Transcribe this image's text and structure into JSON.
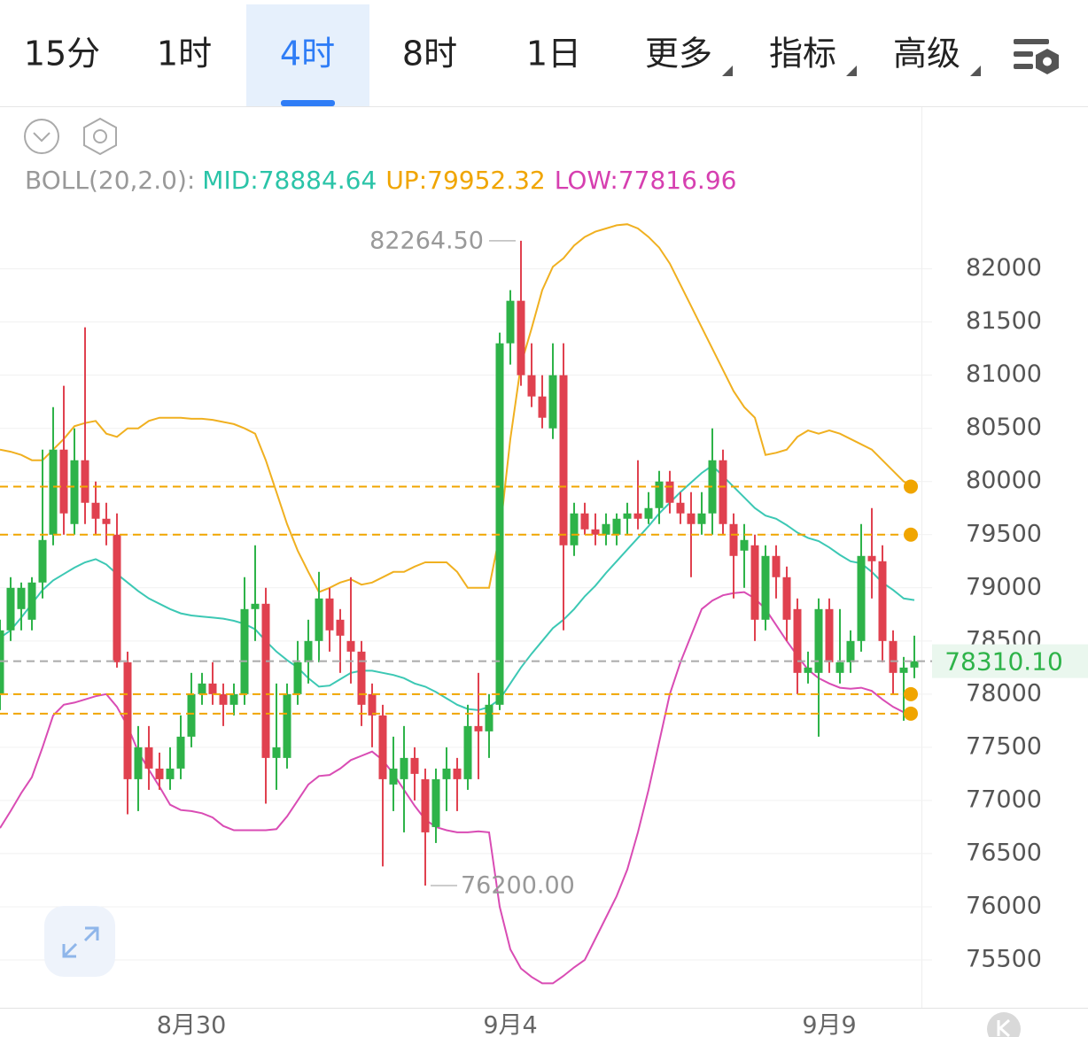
{
  "tabs": [
    "15分",
    "1时",
    "4时",
    "8时",
    "1日",
    "更多",
    "指标",
    "高级"
  ],
  "indicator": {
    "name": "BOLL(20,2.0):",
    "mid": "MID:78884.64",
    "up": "UP:79952.32",
    "low": "LOW:77816.96"
  },
  "chart_data": {
    "type": "candlestick",
    "categories": [
      null,
      null,
      null,
      null,
      null,
      null,
      null,
      null,
      null,
      null,
      null,
      null,
      null,
      null,
      null,
      null,
      null,
      null,
      "8月30",
      null,
      null,
      null,
      null,
      null,
      null,
      null,
      null,
      null,
      null,
      null,
      null,
      null,
      null,
      null,
      null,
      null,
      null,
      null,
      null,
      null,
      null,
      null,
      null,
      null,
      null,
      null,
      null,
      null,
      "9月4",
      null,
      null,
      null,
      null,
      null,
      null,
      null,
      null,
      null,
      null,
      null,
      null,
      null,
      null,
      null,
      null,
      null,
      null,
      null,
      null,
      null,
      null,
      null,
      null,
      null,
      null,
      null,
      null,
      null,
      "9月9",
      null,
      null,
      null,
      null,
      null,
      null,
      null,
      null
    ],
    "open": [
      78000,
      78600,
      78800,
      78700,
      79050,
      79500,
      80300,
      79600,
      80200,
      79800,
      79650,
      79500,
      78300,
      77200,
      77500,
      77300,
      77200,
      77300,
      77600,
      78000,
      78100,
      78000,
      77900,
      78000,
      78800,
      78850,
      77400,
      77400,
      78000,
      78300,
      78500,
      78900,
      78700,
      78500,
      78400,
      78000,
      77800,
      77150,
      77200,
      77400,
      77200,
      76750,
      77200,
      77300,
      77200,
      77700,
      77650,
      77900,
      81300,
      81700,
      81000,
      80800,
      80500,
      81000,
      79400,
      79700,
      79550,
      79500,
      79500,
      79650,
      79700,
      79650,
      79750,
      80000,
      79800,
      79700,
      79600,
      79700,
      80200,
      79600,
      79350,
      79400,
      78700,
      79300,
      79100,
      78800,
      78200,
      78200,
      78800,
      78200,
      78300,
      78500,
      79300,
      79250,
      78500,
      78200,
      78250
    ],
    "high": [
      78700,
      79100,
      79050,
      79100,
      80300,
      80700,
      80900,
      80500,
      81450,
      80000,
      79800,
      79700,
      78400,
      77700,
      77700,
      77450,
      77500,
      77800,
      78200,
      78200,
      78300,
      78100,
      78100,
      79100,
      79400,
      79000,
      78100,
      78100,
      78500,
      78700,
      79150,
      79000,
      78800,
      79100,
      78500,
      78100,
      77900,
      77600,
      77700,
      77500,
      77300,
      77300,
      77500,
      77400,
      77900,
      78200,
      78000,
      81400,
      81800,
      82264.5,
      81300,
      81000,
      81300,
      81300,
      79800,
      79800,
      79700,
      79700,
      79700,
      79800,
      80200,
      79900,
      80100,
      80100,
      79900,
      79900,
      79900,
      80500,
      80300,
      79700,
      79600,
      79500,
      79400,
      79400,
      79200,
      78900,
      78400,
      78900,
      78900,
      78800,
      78600,
      79600,
      79750,
      79400,
      78600,
      78350,
      78550
    ],
    "low": [
      77850,
      78500,
      78600,
      78600,
      78900,
      79400,
      79500,
      79500,
      79600,
      79500,
      79400,
      78250,
      76870,
      76900,
      77100,
      77100,
      77100,
      77200,
      77500,
      77900,
      77900,
      77700,
      77800,
      77900,
      78500,
      76970,
      77100,
      77300,
      77900,
      78100,
      78300,
      78400,
      78200,
      78100,
      77700,
      77500,
      76380,
      76900,
      76700,
      77000,
      76200,
      76600,
      76900,
      76900,
      77100,
      77200,
      77400,
      77850,
      81100,
      80900,
      80700,
      80500,
      80400,
      78600,
      79300,
      79500,
      79400,
      79400,
      79400,
      79500,
      79550,
      79600,
      79600,
      79700,
      79600,
      79100,
      79500,
      79500,
      79500,
      78900,
      79000,
      78500,
      78600,
      78900,
      78500,
      78000,
      78100,
      77600,
      78200,
      78100,
      78200,
      78400,
      78900,
      78300,
      78000,
      77750,
      78150
    ],
    "close": [
      78600,
      79000,
      79000,
      79050,
      79450,
      80300,
      79700,
      80200,
      79800,
      79650,
      79600,
      78300,
      77200,
      77500,
      77300,
      77200,
      77300,
      77600,
      78000,
      78100,
      78000,
      77900,
      78000,
      78800,
      78850,
      77400,
      77500,
      78000,
      78300,
      78500,
      78900,
      78600,
      78550,
      78400,
      77900,
      77800,
      77200,
      77300,
      77400,
      77250,
      76700,
      77200,
      77300,
      77200,
      77700,
      77650,
      77900,
      81300,
      81700,
      81000,
      80800,
      80600,
      81000,
      79400,
      79700,
      79550,
      79500,
      79600,
      79650,
      79700,
      79650,
      79750,
      80000,
      79800,
      79700,
      79600,
      79700,
      80200,
      79600,
      79300,
      79450,
      78700,
      79300,
      79100,
      78700,
      78200,
      78250,
      78800,
      78300,
      78300,
      78500,
      79300,
      79250,
      78500,
      78200,
      78250,
      78310.1
    ],
    "up_color": "#2eb349",
    "down_color": "#e0414f",
    "series": [
      {
        "color": "#f0b020",
        "values": [
          80300,
          80280,
          80250,
          80200,
          80200,
          80300,
          80400,
          80520,
          80550,
          80570,
          80450,
          80420,
          80500,
          80500,
          80570,
          80600,
          80600,
          80600,
          80590,
          80590,
          80580,
          80560,
          80540,
          80500,
          80450,
          80200,
          79900,
          79600,
          79350,
          79150,
          78960,
          79000,
          79050,
          79080,
          79030,
          79050,
          79100,
          79150,
          79150,
          79200,
          79240,
          79240,
          79240,
          79150,
          79000,
          79000,
          79000,
          79500,
          80400,
          81100,
          81440,
          81800,
          82020,
          82100,
          82220,
          82300,
          82350,
          82380,
          82410,
          82420,
          82380,
          82300,
          82200,
          82050,
          81850,
          81650,
          81450,
          81250,
          81050,
          80850,
          80700,
          80600,
          80250,
          80270,
          80300,
          80420,
          80480,
          80450,
          80480,
          80450,
          80400,
          80350,
          80300,
          80200,
          80100,
          80000,
          79952.32
        ]
      },
      {
        "color": "#3cc8b4",
        "values": [
          78530,
          78600,
          78720,
          78850,
          78980,
          79070,
          79130,
          79190,
          79240,
          79270,
          79220,
          79130,
          79050,
          78970,
          78900,
          78850,
          78800,
          78760,
          78740,
          78730,
          78720,
          78710,
          78690,
          78660,
          78610,
          78500,
          78400,
          78320,
          78250,
          78150,
          78070,
          78080,
          78140,
          78200,
          78220,
          78220,
          78200,
          78180,
          78150,
          78100,
          78070,
          78020,
          77960,
          77900,
          77860,
          77850,
          77880,
          77950,
          78100,
          78250,
          78380,
          78500,
          78620,
          78700,
          78800,
          78920,
          79020,
          79140,
          79250,
          79360,
          79470,
          79580,
          79700,
          79800,
          79900,
          79990,
          80080,
          80150,
          80050,
          79950,
          79850,
          79750,
          79680,
          79650,
          79590,
          79520,
          79470,
          79440,
          79380,
          79310,
          79250,
          79230,
          79150,
          79050,
          78980,
          78900,
          78884.64
        ]
      },
      {
        "color": "#d94cb4",
        "values": [
          76740,
          76900,
          77070,
          77220,
          77500,
          77800,
          77900,
          77920,
          77950,
          77980,
          78000,
          77880,
          77700,
          77460,
          77290,
          77130,
          76960,
          76910,
          76900,
          76880,
          76840,
          76760,
          76720,
          76720,
          76720,
          76720,
          76730,
          76850,
          77000,
          77150,
          77230,
          77240,
          77300,
          77380,
          77420,
          77460,
          77380,
          77250,
          77100,
          76950,
          76820,
          76750,
          76720,
          76700,
          76700,
          76710,
          76700,
          76000,
          75600,
          75420,
          75340,
          75280,
          75280,
          75350,
          75430,
          75500,
          75700,
          75900,
          76100,
          76350,
          76700,
          77100,
          77550,
          78000,
          78300,
          78550,
          78800,
          78880,
          78930,
          78950,
          78960,
          78900,
          78800,
          78650,
          78500,
          78360,
          78230,
          78150,
          78100,
          78060,
          78050,
          78060,
          78030,
          77950,
          77880,
          77830,
          77816.96
        ]
      }
    ],
    "ylim": [
      75050,
      82530
    ],
    "yticks": [
      75500,
      76000,
      76500,
      77000,
      77500,
      78000,
      78500,
      79000,
      79500,
      80000,
      80500,
      81000,
      81500,
      82000
    ],
    "grid": true,
    "price_lines": [
      79952.32,
      79500,
      78000,
      77816.96
    ],
    "price_line_color": "#f0a500",
    "last_price": {
      "value": 78310.1,
      "label": "78310.10"
    },
    "annotations": [
      {
        "value": 82264.5,
        "label": "82264.50"
      },
      {
        "value": 76200,
        "label": "76200.00"
      }
    ]
  }
}
